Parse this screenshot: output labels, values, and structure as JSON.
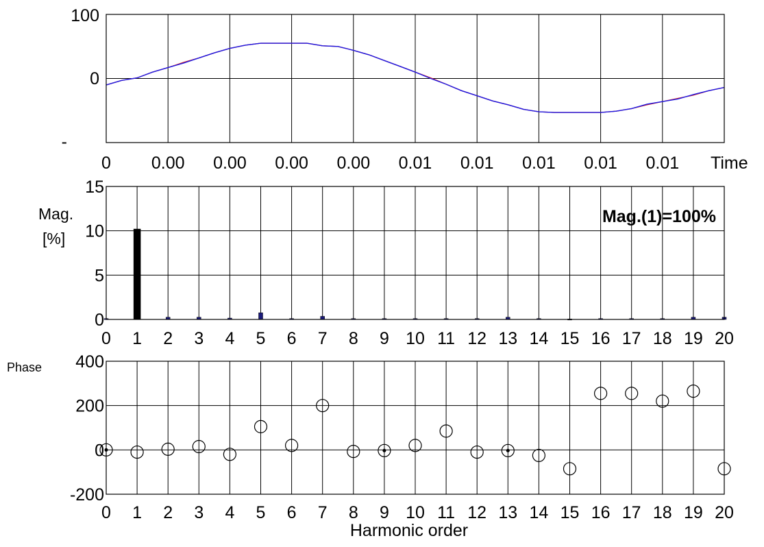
{
  "chart_data": [
    {
      "type": "line",
      "y_ticks": [
        "100",
        "0",
        "-"
      ],
      "ylim": [
        -100,
        100
      ],
      "x_tick_labels": [
        "0",
        "0.00",
        "0.00",
        "0.00",
        "0.00",
        "0.01",
        "0.01",
        "0.01",
        "0.01",
        "0.01"
      ],
      "xlabel": "Time",
      "grid": true,
      "series": [
        {
          "color": "#d81b1b",
          "x": [
            0,
            0.0005,
            0.001,
            0.0015,
            0.002,
            0.0025,
            0.003,
            0.0035,
            0.004,
            0.0045,
            0.005,
            0.0055,
            0.006,
            0.0065,
            0.007,
            0.0075,
            0.008,
            0.0085,
            0.009,
            0.0095,
            0.01,
            0.0105,
            0.011,
            0.0115,
            0.012,
            0.0125,
            0.013,
            0.0135,
            0.014,
            0.0145,
            0.015,
            0.0155,
            0.016,
            0.0165,
            0.017,
            0.0175,
            0.018,
            0.0185,
            0.019,
            0.0195,
            0.02
          ],
          "values": [
            -10,
            -3,
            1,
            10,
            17,
            25,
            32,
            40,
            47,
            52,
            55,
            55,
            55,
            55,
            51,
            50,
            44,
            37,
            28,
            19,
            10,
            1,
            -9,
            -19,
            -27,
            -35,
            -41,
            -48,
            -52,
            -53,
            -53,
            -53,
            -53,
            -51,
            -47,
            -41,
            -36,
            -31,
            -26,
            -19,
            -14
          ]
        },
        {
          "color": "#1a1ae6",
          "x": [
            0,
            0.0005,
            0.001,
            0.0015,
            0.002,
            0.0025,
            0.003,
            0.0035,
            0.004,
            0.0045,
            0.005,
            0.0055,
            0.006,
            0.0065,
            0.007,
            0.0075,
            0.008,
            0.0085,
            0.009,
            0.0095,
            0.01,
            0.0105,
            0.011,
            0.0115,
            0.012,
            0.0125,
            0.013,
            0.0135,
            0.014,
            0.0145,
            0.015,
            0.0155,
            0.016,
            0.0165,
            0.017,
            0.0175,
            0.018,
            0.0185,
            0.019,
            0.0195,
            0.02
          ],
          "values": [
            -10,
            -3,
            1,
            10,
            17,
            24,
            32,
            40,
            47,
            52,
            55,
            55,
            55,
            55,
            51,
            50,
            44,
            37,
            28,
            19,
            10,
            0,
            -9,
            -19,
            -27,
            -35,
            -41,
            -48,
            -52,
            -53,
            -53,
            -53,
            -53,
            -51,
            -47,
            -40,
            -36,
            -32,
            -25,
            -19,
            -14
          ]
        }
      ]
    },
    {
      "type": "bar",
      "ylabel_lines": [
        "Mag.",
        "[%]"
      ],
      "ylim": [
        0,
        15
      ],
      "y_ticks": [
        "0",
        "5",
        "10",
        "15"
      ],
      "categories": [
        "0",
        "1",
        "2",
        "3",
        "4",
        "5",
        "6",
        "7",
        "8",
        "9",
        "10",
        "11",
        "12",
        "13",
        "14",
        "15",
        "16",
        "17",
        "18",
        "19",
        "20"
      ],
      "values": [
        0.1,
        10.2,
        0.25,
        0.25,
        0.15,
        0.75,
        0.1,
        0.35,
        0.1,
        0.1,
        0.1,
        0.1,
        0.1,
        0.25,
        0.1,
        0.05,
        0.1,
        0.1,
        0.1,
        0.25,
        0.25
      ],
      "annotation": "Mag.(1)=100%",
      "grid": true
    },
    {
      "type": "scatter",
      "ylabel": "Phase",
      "ylim": [
        -200,
        400
      ],
      "y_ticks": [
        "-200",
        "0",
        "200",
        "400"
      ],
      "categories": [
        "0",
        "1",
        "2",
        "3",
        "4",
        "5",
        "6",
        "7",
        "8",
        "9",
        "10",
        "11",
        "12",
        "13",
        "14",
        "15",
        "16",
        "17",
        "18",
        "19",
        "20"
      ],
      "values": [
        0,
        -10,
        3,
        15,
        -20,
        105,
        20,
        200,
        -7,
        -3,
        20,
        85,
        -10,
        -3,
        -25,
        -85,
        255,
        255,
        220,
        265,
        -85
      ],
      "center_dots": [
        0,
        9,
        13
      ],
      "xlabel": "Harmonic order",
      "grid": true
    }
  ]
}
